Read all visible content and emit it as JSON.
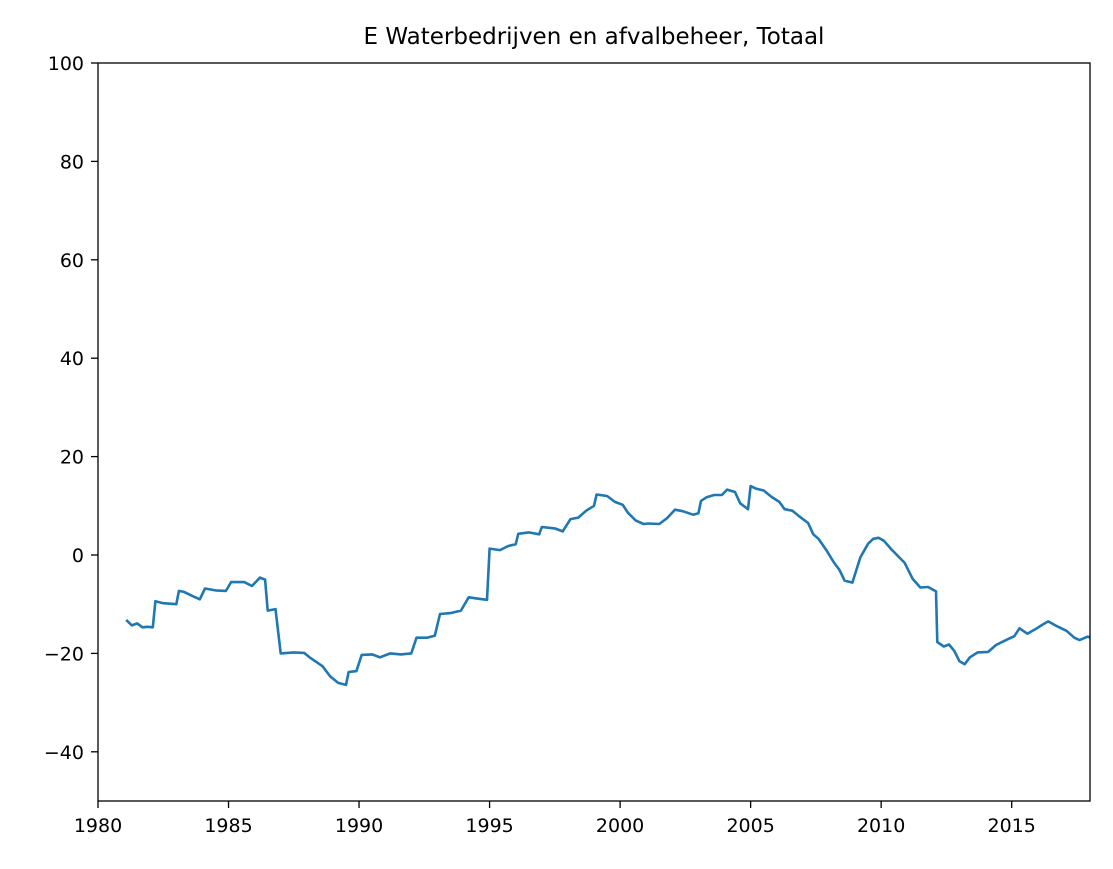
{
  "chart_data": {
    "type": "line",
    "title": "E Waterbedrijven en afvalbeheer, Totaal",
    "xlabel": "",
    "ylabel": "",
    "xlim": [
      1980,
      2018
    ],
    "ylim": [
      -50,
      100
    ],
    "x_ticks": [
      "1980",
      "1985",
      "1990",
      "1995",
      "2000",
      "2005",
      "2010",
      "2015"
    ],
    "y_ticks": [
      "100",
      "80",
      "60",
      "40",
      "20",
      "0",
      "−20",
      "−40"
    ],
    "grid": false,
    "colors": {
      "line": "#1f77b4"
    },
    "series": [
      {
        "values": [
          [
            1981.08,
            -13.2
          ],
          [
            1981.3,
            -14.3
          ],
          [
            1981.5,
            -13.9
          ],
          [
            1981.7,
            -14.7
          ],
          [
            1981.9,
            -14.6
          ],
          [
            1982.1,
            -14.7
          ],
          [
            1982.2,
            -9.4
          ],
          [
            1982.5,
            -9.8
          ],
          [
            1983.0,
            -10.0
          ],
          [
            1983.1,
            -7.3
          ],
          [
            1983.3,
            -7.5
          ],
          [
            1983.6,
            -8.3
          ],
          [
            1983.9,
            -9.0
          ],
          [
            1984.1,
            -6.8
          ],
          [
            1984.5,
            -7.2
          ],
          [
            1984.9,
            -7.3
          ],
          [
            1985.1,
            -5.5
          ],
          [
            1985.6,
            -5.5
          ],
          [
            1985.9,
            -6.3
          ],
          [
            1986.2,
            -4.6
          ],
          [
            1986.4,
            -5.0
          ],
          [
            1986.5,
            -11.3
          ],
          [
            1986.8,
            -11.0
          ],
          [
            1987.0,
            -20.0
          ],
          [
            1987.5,
            -19.8
          ],
          [
            1987.9,
            -19.9
          ],
          [
            1988.1,
            -20.8
          ],
          [
            1988.6,
            -22.6
          ],
          [
            1988.9,
            -24.7
          ],
          [
            1989.2,
            -26.0
          ],
          [
            1989.5,
            -26.4
          ],
          [
            1989.6,
            -23.8
          ],
          [
            1989.9,
            -23.6
          ],
          [
            1990.1,
            -20.3
          ],
          [
            1990.5,
            -20.2
          ],
          [
            1990.8,
            -20.8
          ],
          [
            1991.2,
            -20.0
          ],
          [
            1991.6,
            -20.2
          ],
          [
            1992.0,
            -20.0
          ],
          [
            1992.2,
            -16.8
          ],
          [
            1992.6,
            -16.8
          ],
          [
            1992.9,
            -16.4
          ],
          [
            1993.1,
            -12.0
          ],
          [
            1993.5,
            -11.8
          ],
          [
            1993.9,
            -11.3
          ],
          [
            1994.2,
            -8.6
          ],
          [
            1994.6,
            -8.9
          ],
          [
            1994.9,
            -9.1
          ],
          [
            1995.0,
            1.3
          ],
          [
            1995.4,
            1.0
          ],
          [
            1995.7,
            1.8
          ],
          [
            1996.0,
            2.2
          ],
          [
            1996.1,
            4.3
          ],
          [
            1996.5,
            4.6
          ],
          [
            1996.9,
            4.2
          ],
          [
            1997.0,
            5.7
          ],
          [
            1997.5,
            5.4
          ],
          [
            1997.8,
            4.8
          ],
          [
            1998.1,
            7.3
          ],
          [
            1998.4,
            7.6
          ],
          [
            1998.7,
            9.0
          ],
          [
            1999.0,
            10.0
          ],
          [
            1999.1,
            12.3
          ],
          [
            1999.5,
            12.0
          ],
          [
            1999.8,
            10.8
          ],
          [
            2000.1,
            10.2
          ],
          [
            2000.3,
            8.6
          ],
          [
            2000.6,
            7.0
          ],
          [
            2000.9,
            6.3
          ],
          [
            2001.1,
            6.4
          ],
          [
            2001.5,
            6.3
          ],
          [
            2001.8,
            7.5
          ],
          [
            2002.1,
            9.2
          ],
          [
            2002.4,
            8.9
          ],
          [
            2002.8,
            8.2
          ],
          [
            2003.0,
            8.5
          ],
          [
            2003.1,
            11.0
          ],
          [
            2003.3,
            11.7
          ],
          [
            2003.6,
            12.2
          ],
          [
            2003.9,
            12.2
          ],
          [
            2004.1,
            13.3
          ],
          [
            2004.4,
            12.8
          ],
          [
            2004.6,
            10.5
          ],
          [
            2004.9,
            9.3
          ],
          [
            2005.0,
            14.0
          ],
          [
            2005.2,
            13.5
          ],
          [
            2005.5,
            13.1
          ],
          [
            2005.8,
            11.8
          ],
          [
            2006.1,
            10.8
          ],
          [
            2006.3,
            9.3
          ],
          [
            2006.6,
            9.0
          ],
          [
            2006.9,
            7.7
          ],
          [
            2007.2,
            6.5
          ],
          [
            2007.4,
            4.2
          ],
          [
            2007.6,
            3.3
          ],
          [
            2007.9,
            1.0
          ],
          [
            2008.2,
            -1.6
          ],
          [
            2008.4,
            -3.0
          ],
          [
            2008.6,
            -5.2
          ],
          [
            2008.9,
            -5.6
          ],
          [
            2009.2,
            -0.5
          ],
          [
            2009.5,
            2.3
          ],
          [
            2009.7,
            3.3
          ],
          [
            2009.9,
            3.5
          ],
          [
            2010.1,
            2.9
          ],
          [
            2010.4,
            1.1
          ],
          [
            2010.7,
            -0.5
          ],
          [
            2010.9,
            -1.6
          ],
          [
            2011.2,
            -4.8
          ],
          [
            2011.5,
            -6.6
          ],
          [
            2011.8,
            -6.5
          ],
          [
            2012.1,
            -7.4
          ],
          [
            2012.15,
            -17.7
          ],
          [
            2012.4,
            -18.6
          ],
          [
            2012.6,
            -18.2
          ],
          [
            2012.8,
            -19.5
          ],
          [
            2013.0,
            -21.6
          ],
          [
            2013.2,
            -22.2
          ],
          [
            2013.4,
            -20.8
          ],
          [
            2013.7,
            -19.8
          ],
          [
            2014.1,
            -19.7
          ],
          [
            2014.4,
            -18.3
          ],
          [
            2014.9,
            -17.0
          ],
          [
            2015.1,
            -16.5
          ],
          [
            2015.3,
            -14.9
          ],
          [
            2015.6,
            -16.0
          ],
          [
            2015.9,
            -15.1
          ],
          [
            2016.2,
            -14.1
          ],
          [
            2016.4,
            -13.5
          ],
          [
            2016.7,
            -14.4
          ],
          [
            2017.1,
            -15.4
          ],
          [
            2017.4,
            -16.8
          ],
          [
            2017.6,
            -17.3
          ],
          [
            2017.9,
            -16.6
          ],
          [
            2018.0,
            -16.7
          ]
        ]
      }
    ]
  }
}
